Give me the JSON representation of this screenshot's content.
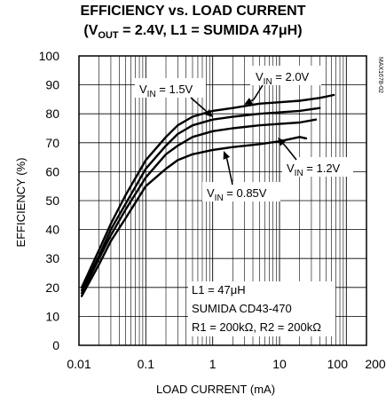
{
  "title_line1": "EFFICIENCY vs. LOAD CURRENT",
  "title_line2_parts": {
    "open": "(V",
    "sub": "OUT",
    "rest": " = 2.4V, L1 = SUMIDA 47μH)"
  },
  "watermark": "MAX1678-02",
  "notes": {
    "line1": "L1 = 47μH",
    "line2": "SUMIDA CD43-470",
    "line3": "R1 = 200kΩ, R2 = 200kΩ"
  },
  "chart_data": {
    "type": "line",
    "title": "EFFICIENCY vs. LOAD CURRENT (VOUT = 2.4V, L1 = SUMIDA 47μH)",
    "xlabel": "LOAD CURRENT (mA)",
    "ylabel": "EFFICIENCY (%)",
    "x_scale": "log",
    "xlim": [
      0.01,
      200
    ],
    "ylim": [
      0,
      100
    ],
    "grid": true,
    "x_ticks": [
      0.01,
      0.1,
      1,
      10,
      100,
      200
    ],
    "x_tick_labels": [
      "0.01",
      "0.1",
      "1",
      "10",
      "100",
      "200"
    ],
    "y_ticks": [
      0,
      10,
      20,
      30,
      40,
      50,
      60,
      70,
      80,
      90,
      100
    ],
    "y_tick_labels": [
      "0",
      "10",
      "20",
      "30",
      "40",
      "50",
      "60",
      "70",
      "80",
      "90",
      "100"
    ],
    "series": [
      {
        "name": "VIN = 2.0V",
        "label_parts": {
          "v": "V",
          "sub": "IN",
          "rest": " = 2.0V"
        },
        "x": [
          0.011,
          0.02,
          0.03,
          0.05,
          0.1,
          0.2,
          0.3,
          0.5,
          1,
          2,
          5,
          10,
          20,
          40,
          65
        ],
        "y": [
          20,
          33,
          42,
          52,
          64,
          72,
          76,
          79,
          81,
          82,
          83.5,
          84,
          84.5,
          85.5,
          86.5
        ]
      },
      {
        "name": "VIN = 1.5V",
        "label_parts": {
          "v": "V",
          "sub": "IN",
          "rest": " = 1.5V"
        },
        "x": [
          0.011,
          0.02,
          0.03,
          0.05,
          0.1,
          0.2,
          0.3,
          0.5,
          1,
          2,
          5,
          10,
          20,
          40
        ],
        "y": [
          19,
          31,
          40,
          49,
          61,
          69,
          73,
          76,
          78,
          79,
          80,
          80.5,
          81,
          82
        ]
      },
      {
        "name": "VIN = 1.2V",
        "label_parts": {
          "v": "V",
          "sub": "IN",
          "rest": " = 1.2V"
        },
        "x": [
          0.011,
          0.02,
          0.03,
          0.05,
          0.1,
          0.2,
          0.3,
          0.5,
          1,
          2,
          5,
          10,
          20,
          35
        ],
        "y": [
          18,
          30,
          38,
          47,
          58,
          66,
          69,
          72,
          74,
          75,
          76,
          76.5,
          77,
          78
        ]
      },
      {
        "name": "VIN = 0.85V",
        "label_parts": {
          "v": "V",
          "sub": "IN",
          "rest": " = 0.85V"
        },
        "x": [
          0.011,
          0.02,
          0.03,
          0.05,
          0.1,
          0.2,
          0.3,
          0.5,
          1,
          2,
          5,
          10,
          20,
          25
        ],
        "y": [
          17,
          28,
          36,
          44,
          55,
          61,
          64,
          66,
          67.5,
          68.5,
          69.5,
          70.5,
          72,
          71.5
        ]
      }
    ]
  }
}
